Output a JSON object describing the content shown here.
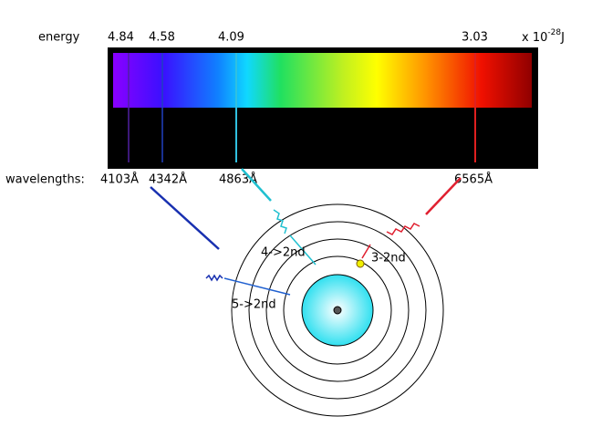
{
  "energy": {
    "label": "energy",
    "values": [
      "4.84",
      "4.58",
      "4.09",
      "3.03"
    ],
    "unit": {
      "prefix": "x 10",
      "exponent": "-28",
      "suffix": "J"
    }
  },
  "wavelengths": {
    "label": "wavelengths:",
    "values": [
      "4103Å",
      "4342Å",
      "4863Å",
      "6565Å"
    ]
  },
  "transitions": [
    "4->2nd",
    "3-2nd",
    "5->2nd"
  ]
}
